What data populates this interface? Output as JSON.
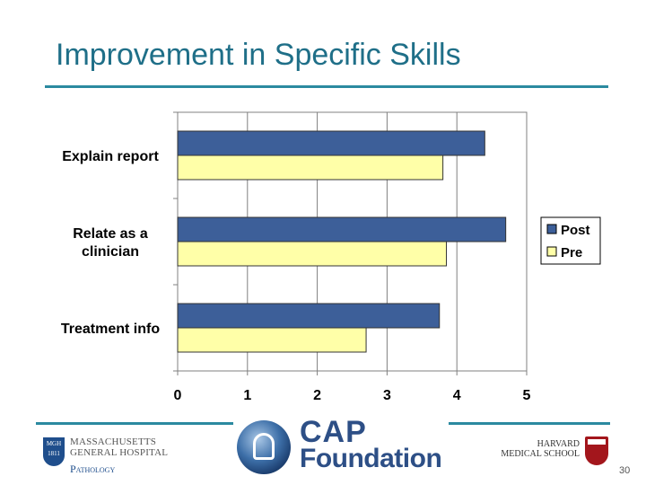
{
  "slide": {
    "title": "Improvement in Specific Skills",
    "page_number": "30"
  },
  "footer": {
    "mgh_line1": "MASSACHUSETTS",
    "mgh_line2": "GENERAL HOSPITAL",
    "mgh_line3": "Pathology",
    "mgh_shield_text": "MGH",
    "mgh_shield_year": "1811",
    "cap_line1": "CAP",
    "cap_line2": "Foundation",
    "hms_line1": "HARVARD",
    "hms_line2": "MEDICAL SCHOOL"
  },
  "colors": {
    "post": "#3d5f99",
    "pre": "#ffffa8",
    "accent": "#2b8aa0",
    "title": "#1f6f88"
  },
  "chart_data": {
    "type": "bar",
    "orientation": "horizontal",
    "title": "",
    "xlabel": "",
    "ylabel": "",
    "categories": [
      "Explain report",
      "Relate as a clinician",
      "Treatment info"
    ],
    "category_lines": [
      [
        "Explain report"
      ],
      [
        "Relate as a",
        "clinician"
      ],
      [
        "Treatment info"
      ]
    ],
    "series": [
      {
        "name": "Post",
        "values": [
          4.4,
          4.7,
          3.75
        ]
      },
      {
        "name": "Pre",
        "values": [
          3.8,
          3.85,
          2.7
        ]
      }
    ],
    "xlim": [
      0,
      5
    ],
    "xticks": [
      0,
      1,
      2,
      3,
      4,
      5
    ],
    "grid": "vertical",
    "legend": "right"
  }
}
